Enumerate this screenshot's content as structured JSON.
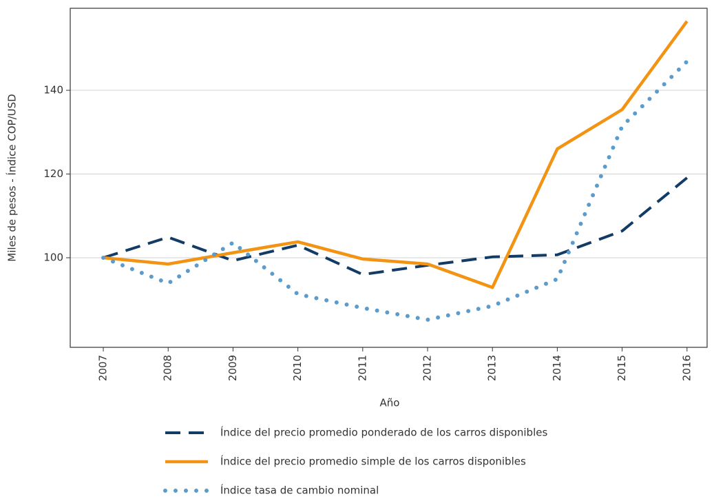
{
  "chart_data": {
    "type": "line",
    "x_label": "Año",
    "y_label": "Miles de pesos - Índice COP/USD",
    "x": [
      2007,
      2008,
      2009,
      2010,
      2011,
      2012,
      2013,
      2014,
      2015,
      2016
    ],
    "xlim": [
      2006.49,
      2016.31
    ],
    "xticks": [
      2007,
      2008,
      2009,
      2010,
      2011,
      2012,
      2013,
      2014,
      2015,
      2016
    ],
    "ylim": [
      78.6,
      159.6
    ],
    "yticks": [
      100,
      120,
      140
    ],
    "grid": true,
    "legend": "bottom",
    "series": [
      {
        "name": "Índice del precio promedio ponderado de los carros disponibles",
        "color": "#123c66",
        "style": "dashed",
        "values": [
          100,
          104.9,
          99.3,
          103.0,
          96.0,
          98.2,
          100.2,
          100.7,
          106.4,
          119.1
        ]
      },
      {
        "name": "Índice del precio promedio simple de los carros disponibles",
        "color": "#f39313",
        "style": "solid",
        "values": [
          100,
          98.5,
          101.2,
          103.8,
          99.7,
          98.5,
          92.9,
          126.0,
          135.4,
          156.5
        ]
      },
      {
        "name": "Índice tasa de cambio nominal",
        "color": "#5b9ccc",
        "style": "dotted",
        "values": [
          100,
          93.9,
          103.6,
          91.3,
          88.0,
          85.2,
          88.5,
          94.9,
          131.4,
          146.9
        ]
      }
    ]
  }
}
